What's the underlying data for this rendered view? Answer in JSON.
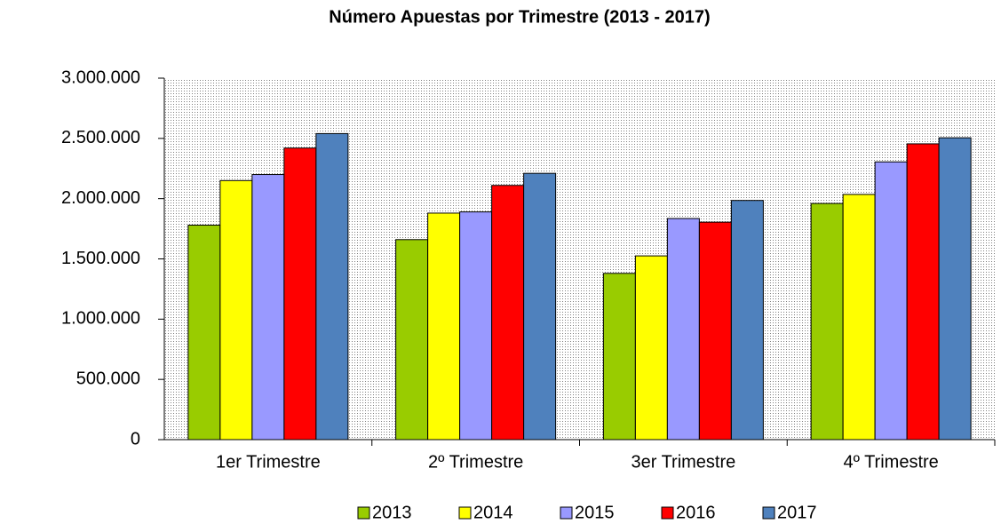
{
  "chart_data": {
    "type": "bar",
    "title": "Número Apuestas por Trimestre (2013 - 2017)",
    "categories": [
      "1er Trimestre",
      "2º Trimestre",
      "3er Trimestre",
      "4º Trimestre"
    ],
    "series": [
      {
        "name": "2013",
        "color": "#99cc00",
        "values": [
          1780000,
          1660000,
          1380000,
          1960000
        ]
      },
      {
        "name": "2014",
        "color": "#ffff00",
        "values": [
          2150000,
          1880000,
          1525000,
          2035000
        ]
      },
      {
        "name": "2015",
        "color": "#9999ff",
        "values": [
          2200000,
          1890000,
          1835000,
          2305000
        ]
      },
      {
        "name": "2016",
        "color": "#ff0000",
        "values": [
          2420000,
          2110000,
          1805000,
          2455000
        ]
      },
      {
        "name": "2017",
        "color": "#4f81bd",
        "values": [
          2540000,
          2210000,
          1985000,
          2505000
        ]
      }
    ],
    "ylim": [
      0,
      3000000
    ],
    "yticks": [
      0,
      {
        "value": 500000,
        "label": "500.000"
      },
      {
        "value": 1000000,
        "label": "1.000.000"
      },
      {
        "value": 1500000,
        "label": "1.500.000"
      },
      {
        "value": 2000000,
        "label": "2.000.000"
      },
      {
        "value": 2500000,
        "label": "2.500.000"
      },
      {
        "value": 3000000,
        "label": "3.000.000"
      }
    ],
    "grid": false,
    "legend": "bottom"
  }
}
